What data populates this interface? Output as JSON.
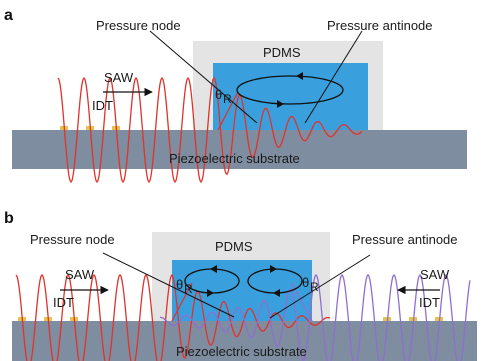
{
  "panel_a": {
    "letter": "a",
    "pressure_node": "Pressure node",
    "pressure_antinode": "Pressure antinode",
    "pdms": "PDMS",
    "saw": "SAW",
    "idt": "IDT",
    "theta": "θ",
    "theta_sub": "R",
    "substrate": "Piezoelectric substrate"
  },
  "panel_b": {
    "letter": "b",
    "pressure_node": "Pressure node",
    "pressure_antinode": "Pressure antinode",
    "pdms": "PDMS",
    "saw_left": "SAW",
    "saw_right": "SAW",
    "idt_left": "IDT",
    "idt_right": "IDT",
    "theta": "θ",
    "theta_sub": "R",
    "substrate": "Piezoelectric substrate"
  },
  "colors": {
    "substrate": "#7e8d9f",
    "pdms_housing": "#e4e4e4",
    "fluid_channel": "#3aa0dd",
    "wave_left": "#e0332b",
    "wave_right": "#8e6fd0",
    "electrode": "#e7c24e"
  }
}
